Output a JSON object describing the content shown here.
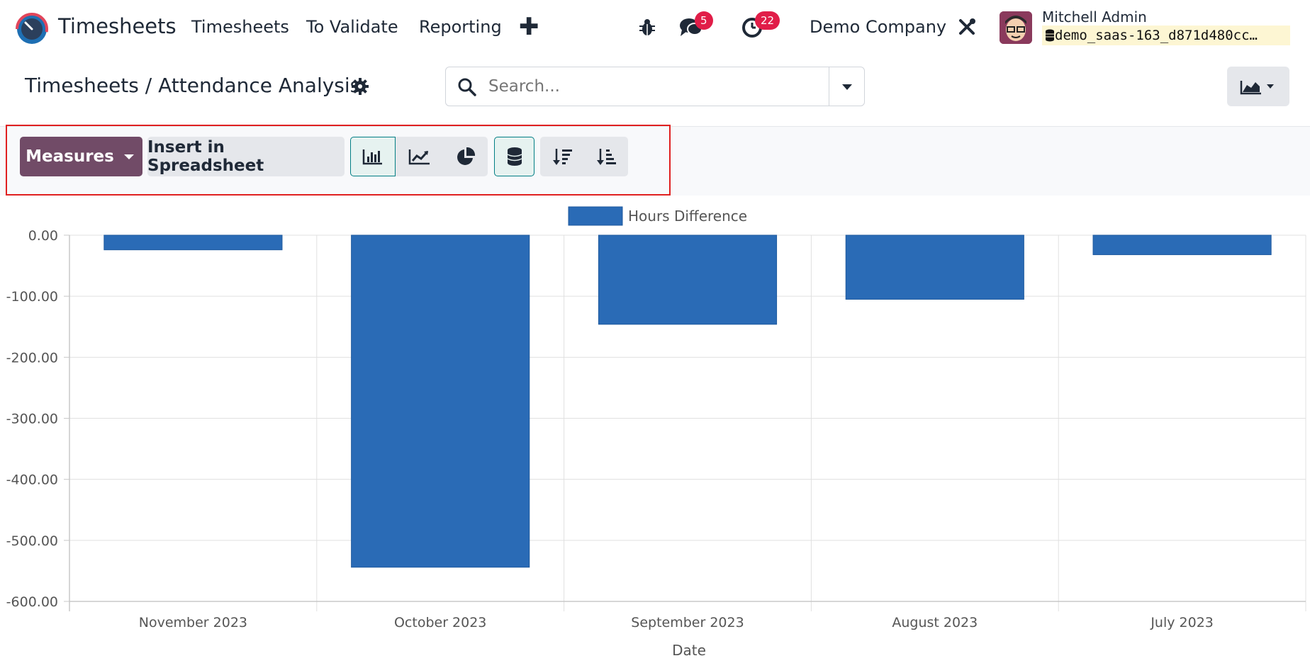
{
  "navbar": {
    "app_name": "Timesheets",
    "menu": [
      "Timesheets",
      "To Validate",
      "Reporting"
    ],
    "plus": "✚",
    "messages_badge": "5",
    "activities_badge": "22",
    "company": "Demo Company",
    "user_name": "Mitchell Admin",
    "database": "demo_saas-163_d871d480cc…"
  },
  "control_panel": {
    "breadcrumb": "Timesheets / Attendance Analysis",
    "search_placeholder": "Search..."
  },
  "toolbar": {
    "measures_label": "Measures",
    "insert_label": "Insert in Spreadsheet"
  },
  "colors": {
    "bar": "#2a6bb6",
    "accent": "#714b67",
    "active_border": "#017e84"
  },
  "chart_data": {
    "type": "bar",
    "categories": [
      "November 2023",
      "October 2023",
      "September 2023",
      "August 2023",
      "July 2023"
    ],
    "series": [
      {
        "name": "Hours Difference",
        "values": [
          -24,
          -544,
          -146,
          -105,
          -32
        ]
      }
    ],
    "xlabel": "Date",
    "ylabel": "",
    "ylim": [
      -600,
      0
    ],
    "yticks": [
      "0.00",
      "-100.00",
      "-200.00",
      "-300.00",
      "-400.00",
      "-500.00",
      "-600.00"
    ],
    "grid": true,
    "legend": "top-center"
  }
}
